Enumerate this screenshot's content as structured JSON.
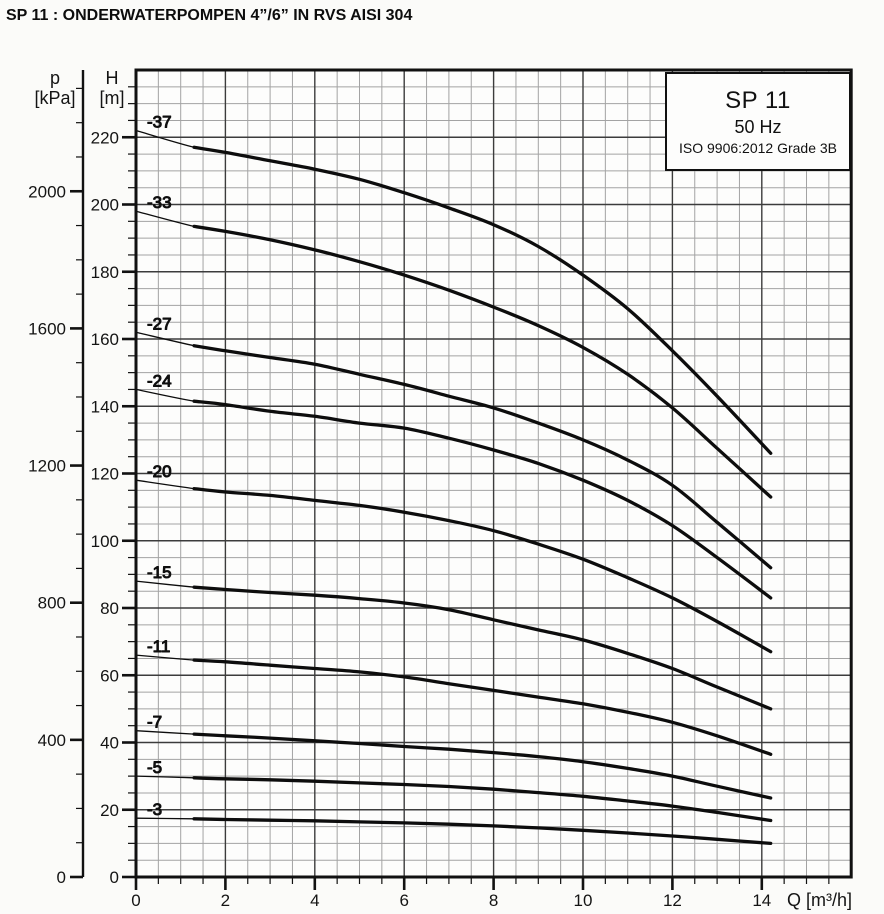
{
  "title": "SP 11 : ONDERWATERPOMPEN 4”/6” IN RVS AISI 304",
  "info_box": {
    "model": "SP 11",
    "frequency": "50 Hz",
    "standard": "ISO 9906:2012 Grade 3B"
  },
  "colors": {
    "curve": "#0d0d0d",
    "grid_minor": "#a3a3a3",
    "grid_major": "#3c3c3c",
    "axis": "#111111",
    "text": "#141414",
    "plot_bg": "#fdfdfc"
  },
  "axes": {
    "pressure": {
      "letter": "p",
      "unit": "[kPa]",
      "ticks_major": [
        0,
        400,
        800,
        1200,
        1600,
        2000
      ],
      "minor_step": 100,
      "minor_max": 2300
    },
    "head": {
      "letter": "H",
      "unit": "[m]",
      "ticks_major": [
        0,
        20,
        40,
        60,
        80,
        100,
        120,
        140,
        160,
        180,
        200,
        220
      ],
      "minor_step": 5,
      "max": 240
    },
    "flow": {
      "label": "Q [m³/h]",
      "ticks_major": [
        0,
        2,
        4,
        6,
        8,
        10,
        12,
        14
      ],
      "minor_step": 0.5,
      "max": 16
    }
  },
  "chart_data": {
    "type": "line",
    "title": "SP 11 submersible pump performance curves",
    "subtitle": "50 Hz — ISO 9906:2012 Grade 3B",
    "xlabel": "Q [m³/h]",
    "ylabel": "H [m]",
    "ylabel_secondary": "p [kPa]",
    "xlim": [
      0,
      16
    ],
    "ylim": [
      0,
      240
    ],
    "ylim_secondary_kpa": [
      0,
      2300
    ],
    "grid": true,
    "legend_position": "top-right-box",
    "q": [
      0,
      1.3,
      2,
      3,
      4,
      5,
      6,
      7,
      8,
      9,
      10,
      11,
      12,
      13,
      14.2
    ],
    "thin_segment_note": "curves drawn thin below Q≈1.3 m³/h",
    "series": [
      {
        "name": "-37",
        "thick_from": 1.3,
        "H": [
          222,
          217,
          215.5,
          213,
          210.5,
          207.5,
          203.5,
          199,
          194,
          187.5,
          179,
          169,
          156.5,
          143,
          126
        ]
      },
      {
        "name": "-33",
        "thick_from": 1.3,
        "H": [
          198,
          193.5,
          192,
          189.5,
          186.5,
          183,
          179,
          174.5,
          169.5,
          164,
          157.5,
          149.5,
          139.5,
          127.5,
          113
        ]
      },
      {
        "name": "-27",
        "thick_from": 1.3,
        "H": [
          162,
          158,
          156.5,
          154.5,
          152.5,
          149.5,
          146.5,
          143,
          139.5,
          135,
          130,
          124,
          116.5,
          105.5,
          92
        ]
      },
      {
        "name": "-24",
        "thick_from": 1.3,
        "H": [
          145,
          141.5,
          140.5,
          138.5,
          137,
          135,
          133.5,
          130.5,
          127,
          123,
          118,
          112,
          104.5,
          95,
          83
        ]
      },
      {
        "name": "-20",
        "thick_from": 1.3,
        "H": [
          118,
          115.5,
          114.5,
          113.5,
          112,
          110.5,
          108.5,
          106,
          103,
          99,
          94.5,
          89,
          83,
          76,
          67
        ]
      },
      {
        "name": "-15",
        "thick_from": 1.3,
        "H": [
          88,
          86.2,
          85.5,
          84.6,
          83.8,
          82.8,
          81.5,
          79.5,
          76.5,
          73.5,
          70.5,
          66.5,
          62,
          56.5,
          50
        ]
      },
      {
        "name": "-11",
        "thick_from": 1.3,
        "H": [
          66,
          64.5,
          64,
          63,
          62,
          61,
          59.5,
          57.5,
          55.5,
          53.5,
          51.5,
          49,
          46,
          42,
          36.5
        ]
      },
      {
        "name": "-7",
        "thick_from": 1.3,
        "H": [
          43.5,
          42.5,
          42,
          41.3,
          40.5,
          39.7,
          38.8,
          38,
          37,
          35.8,
          34.3,
          32.3,
          30,
          27,
          23.5
        ]
      },
      {
        "name": "-5",
        "thick_from": 1.3,
        "H": [
          30,
          29.5,
          29.2,
          28.9,
          28.5,
          28,
          27.5,
          26.9,
          26.1,
          25.1,
          24,
          22.6,
          21.1,
          19.2,
          16.8
        ]
      },
      {
        "name": "-3",
        "thick_from": 1.3,
        "H": [
          17.5,
          17.3,
          17.1,
          16.9,
          16.7,
          16.4,
          16.1,
          15.7,
          15.2,
          14.6,
          13.9,
          13.1,
          12.2,
          11.2,
          10
        ]
      }
    ]
  }
}
